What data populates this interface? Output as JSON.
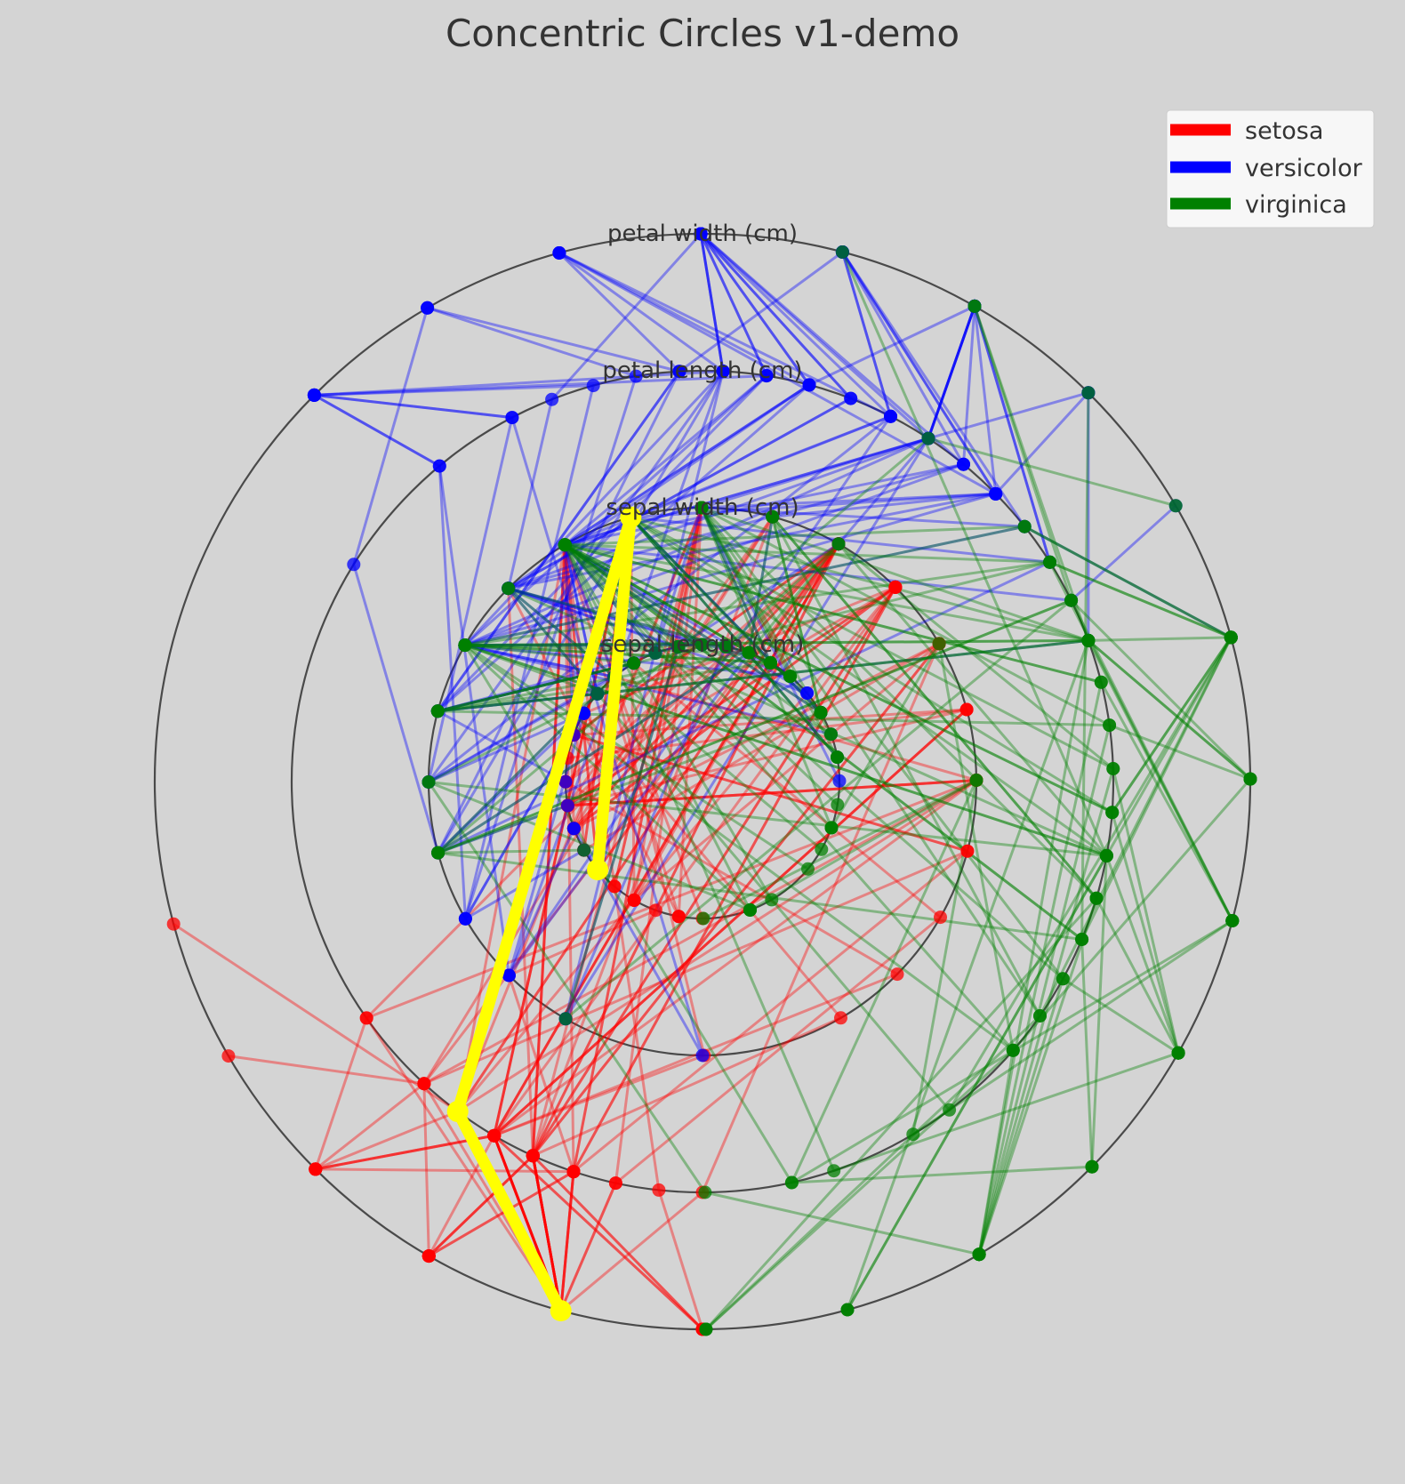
{
  "chart_data": {
    "type": "concentric-circles",
    "title": "Concentric Circles v1-demo",
    "axes": [
      "sepal length (cm)",
      "sepal width (cm)",
      "petal length (cm)",
      "petal width (cm)"
    ],
    "ranges": [
      [
        4.3,
        7.9
      ],
      [
        2.0,
        4.4
      ],
      [
        1.0,
        6.9
      ],
      [
        0.1,
        2.5
      ]
    ],
    "series": [
      {
        "name": "setosa",
        "color": "#ff0000",
        "samples": [
          [
            5.1,
            3.5,
            1.4,
            0.2
          ],
          [
            4.9,
            3.0,
            1.4,
            0.2
          ],
          [
            4.7,
            3.2,
            1.3,
            0.2
          ],
          [
            4.6,
            3.1,
            1.5,
            0.2
          ],
          [
            5.0,
            3.6,
            1.4,
            0.2
          ],
          [
            5.4,
            3.9,
            1.7,
            0.4
          ],
          [
            4.6,
            3.4,
            1.4,
            0.3
          ],
          [
            5.0,
            3.4,
            1.5,
            0.2
          ],
          [
            4.4,
            2.9,
            1.4,
            0.2
          ],
          [
            4.9,
            3.1,
            1.5,
            0.1
          ],
          [
            5.4,
            3.7,
            1.5,
            0.2
          ],
          [
            4.8,
            3.4,
            1.6,
            0.2
          ],
          [
            4.8,
            3.0,
            1.4,
            0.1
          ],
          [
            4.3,
            3.0,
            1.1,
            0.1
          ],
          [
            5.8,
            4.0,
            1.2,
            0.2
          ],
          [
            5.7,
            4.4,
            1.5,
            0.4
          ],
          [
            5.4,
            3.9,
            1.3,
            0.4
          ],
          [
            5.1,
            3.5,
            1.4,
            0.3
          ],
          [
            5.7,
            3.8,
            1.7,
            0.3
          ],
          [
            5.1,
            3.8,
            1.5,
            0.3
          ],
          [
            5.4,
            3.4,
            1.7,
            0.2
          ],
          [
            5.1,
            3.7,
            1.5,
            0.4
          ],
          [
            4.6,
            3.6,
            1.0,
            0.2
          ],
          [
            5.1,
            3.3,
            1.7,
            0.5
          ],
          [
            4.8,
            3.4,
            1.9,
            0.2
          ],
          [
            5.0,
            3.0,
            1.6,
            0.2
          ],
          [
            5.0,
            3.4,
            1.6,
            0.4
          ],
          [
            5.2,
            3.5,
            1.5,
            0.2
          ],
          [
            5.2,
            3.4,
            1.4,
            0.2
          ],
          [
            4.7,
            3.2,
            1.6,
            0.2
          ],
          [
            4.8,
            3.1,
            1.6,
            0.2
          ],
          [
            5.4,
            3.4,
            1.5,
            0.4
          ],
          [
            5.2,
            4.1,
            1.5,
            0.1
          ],
          [
            5.5,
            4.2,
            1.4,
            0.2
          ],
          [
            4.9,
            3.1,
            1.5,
            0.2
          ],
          [
            5.0,
            3.2,
            1.2,
            0.2
          ],
          [
            5.5,
            3.5,
            1.3,
            0.2
          ],
          [
            4.9,
            3.6,
            1.4,
            0.1
          ],
          [
            4.4,
            3.0,
            1.3,
            0.2
          ],
          [
            5.1,
            3.4,
            1.5,
            0.2
          ],
          [
            5.0,
            3.5,
            1.3,
            0.3
          ],
          [
            4.5,
            2.3,
            1.3,
            0.3
          ],
          [
            4.4,
            3.2,
            1.3,
            0.2
          ],
          [
            5.0,
            3.5,
            1.6,
            0.6
          ],
          [
            5.1,
            3.8,
            1.9,
            0.4
          ],
          [
            4.8,
            3.0,
            1.4,
            0.3
          ],
          [
            5.1,
            3.8,
            1.6,
            0.2
          ],
          [
            4.6,
            3.2,
            1.4,
            0.2
          ],
          [
            5.3,
            3.7,
            1.5,
            0.2
          ],
          [
            5.0,
            3.3,
            1.4,
            0.2
          ]
        ]
      },
      {
        "name": "versicolor",
        "color": "#0000ff",
        "samples": [
          [
            7.0,
            3.2,
            4.7,
            1.4
          ],
          [
            6.4,
            3.2,
            4.5,
            1.5
          ],
          [
            6.9,
            3.1,
            4.9,
            1.5
          ],
          [
            5.5,
            2.3,
            4.0,
            1.3
          ],
          [
            6.5,
            2.8,
            4.6,
            1.5
          ],
          [
            5.7,
            2.8,
            4.5,
            1.3
          ],
          [
            6.3,
            3.3,
            4.7,
            1.6
          ],
          [
            4.9,
            2.4,
            3.3,
            1.0
          ],
          [
            6.6,
            2.9,
            4.6,
            1.3
          ],
          [
            5.2,
            2.7,
            3.9,
            1.4
          ],
          [
            5.0,
            2.0,
            3.5,
            1.0
          ],
          [
            5.9,
            3.0,
            4.2,
            1.5
          ],
          [
            6.0,
            2.2,
            4.0,
            1.0
          ],
          [
            6.1,
            2.9,
            4.7,
            1.4
          ],
          [
            5.6,
            2.9,
            3.6,
            1.3
          ],
          [
            6.7,
            3.1,
            4.4,
            1.4
          ],
          [
            5.6,
            3.0,
            4.5,
            1.5
          ],
          [
            5.8,
            2.7,
            4.1,
            1.0
          ],
          [
            6.2,
            2.2,
            4.5,
            1.5
          ],
          [
            5.6,
            2.5,
            3.9,
            1.1
          ],
          [
            5.9,
            3.2,
            4.8,
            1.8
          ],
          [
            6.1,
            2.8,
            4.0,
            1.3
          ],
          [
            6.3,
            2.5,
            4.9,
            1.5
          ],
          [
            6.1,
            2.8,
            4.7,
            1.2
          ],
          [
            6.4,
            2.9,
            4.3,
            1.3
          ],
          [
            6.6,
            3.0,
            4.4,
            1.4
          ],
          [
            6.8,
            2.8,
            4.8,
            1.4
          ],
          [
            6.7,
            3.0,
            5.0,
            1.7
          ],
          [
            6.0,
            2.9,
            4.5,
            1.5
          ],
          [
            5.7,
            2.6,
            3.5,
            1.0
          ],
          [
            5.5,
            2.4,
            3.8,
            1.1
          ],
          [
            5.5,
            2.4,
            3.7,
            1.0
          ],
          [
            5.8,
            2.7,
            3.9,
            1.2
          ],
          [
            6.0,
            2.7,
            5.1,
            1.6
          ],
          [
            5.4,
            3.0,
            4.5,
            1.5
          ],
          [
            6.0,
            3.4,
            4.5,
            1.6
          ],
          [
            6.7,
            3.1,
            4.7,
            1.5
          ],
          [
            6.3,
            2.3,
            4.4,
            1.3
          ],
          [
            5.6,
            3.0,
            4.1,
            1.3
          ],
          [
            5.5,
            2.5,
            4.0,
            1.3
          ],
          [
            5.5,
            2.6,
            4.4,
            1.2
          ],
          [
            6.1,
            3.0,
            4.6,
            1.4
          ],
          [
            5.8,
            2.6,
            4.0,
            1.2
          ],
          [
            5.0,
            2.3,
            3.3,
            1.0
          ],
          [
            5.6,
            2.7,
            4.2,
            1.3
          ],
          [
            5.7,
            3.0,
            4.2,
            1.2
          ],
          [
            5.7,
            2.9,
            4.2,
            1.3
          ],
          [
            6.2,
            2.9,
            4.3,
            1.3
          ],
          [
            5.1,
            2.5,
            3.0,
            1.1
          ],
          [
            5.7,
            2.8,
            4.1,
            1.3
          ]
        ]
      },
      {
        "name": "virginica",
        "color": "#008000",
        "samples": [
          [
            6.3,
            3.3,
            6.0,
            2.5
          ],
          [
            5.8,
            2.7,
            5.1,
            1.9
          ],
          [
            7.1,
            3.0,
            5.9,
            2.1
          ],
          [
            6.3,
            2.9,
            5.6,
            1.8
          ],
          [
            6.5,
            3.0,
            5.8,
            2.2
          ],
          [
            7.6,
            3.0,
            6.6,
            2.1
          ],
          [
            4.9,
            2.5,
            4.5,
            1.7
          ],
          [
            7.3,
            2.9,
            6.3,
            1.8
          ],
          [
            6.7,
            2.5,
            5.8,
            1.8
          ],
          [
            7.2,
            3.6,
            6.1,
            2.5
          ],
          [
            6.5,
            3.2,
            5.1,
            2.0
          ],
          [
            6.4,
            2.7,
            5.3,
            1.9
          ],
          [
            6.8,
            3.0,
            5.5,
            2.1
          ],
          [
            5.7,
            2.5,
            5.0,
            2.0
          ],
          [
            5.8,
            2.8,
            5.1,
            2.4
          ],
          [
            6.4,
            3.2,
            5.3,
            2.3
          ],
          [
            6.5,
            3.0,
            5.5,
            1.8
          ],
          [
            7.7,
            3.8,
            6.7,
            2.2
          ],
          [
            7.7,
            2.6,
            6.9,
            2.3
          ],
          [
            6.0,
            2.2,
            5.0,
            1.5
          ],
          [
            6.9,
            3.2,
            5.7,
            2.3
          ],
          [
            5.6,
            2.8,
            4.9,
            2.0
          ],
          [
            7.7,
            2.8,
            6.7,
            2.0
          ],
          [
            6.3,
            2.7,
            4.9,
            1.8
          ],
          [
            6.7,
            3.3,
            5.7,
            2.1
          ],
          [
            7.2,
            3.2,
            6.0,
            1.8
          ],
          [
            6.2,
            2.8,
            4.8,
            1.8
          ],
          [
            6.1,
            3.0,
            4.9,
            1.8
          ],
          [
            6.4,
            2.8,
            5.6,
            2.1
          ],
          [
            7.2,
            3.0,
            5.8,
            1.6
          ],
          [
            7.4,
            2.8,
            6.1,
            1.9
          ],
          [
            7.9,
            3.8,
            6.4,
            2.0
          ],
          [
            6.4,
            2.8,
            5.6,
            2.2
          ],
          [
            6.3,
            2.8,
            5.1,
            1.5
          ],
          [
            6.1,
            2.6,
            5.6,
            1.4
          ],
          [
            7.7,
            3.0,
            6.1,
            2.3
          ],
          [
            6.3,
            3.4,
            5.6,
            2.4
          ],
          [
            6.4,
            3.1,
            5.5,
            1.8
          ],
          [
            6.0,
            3.0,
            4.8,
            1.8
          ],
          [
            6.9,
            3.1,
            5.4,
            2.1
          ],
          [
            6.7,
            3.1,
            5.6,
            2.4
          ],
          [
            6.9,
            3.1,
            5.1,
            2.3
          ],
          [
            5.8,
            2.7,
            5.1,
            1.9
          ],
          [
            6.8,
            3.2,
            5.9,
            2.3
          ],
          [
            6.7,
            3.3,
            5.7,
            2.5
          ],
          [
            6.7,
            3.0,
            5.2,
            2.3
          ],
          [
            6.3,
            2.5,
            5.0,
            1.9
          ],
          [
            6.5,
            3.0,
            5.2,
            2.0
          ],
          [
            6.2,
            3.4,
            5.4,
            2.3
          ],
          [
            5.9,
            3.0,
            5.1,
            1.8
          ]
        ]
      }
    ],
    "highlight": {
      "color": "#ffff00",
      "sample": [
        4.8,
        3.1,
        1.6,
        0.2
      ]
    },
    "legend": {
      "placement": "upper right",
      "entries": [
        "setosa",
        "versicolor",
        "virginica"
      ]
    },
    "grid": false
  }
}
